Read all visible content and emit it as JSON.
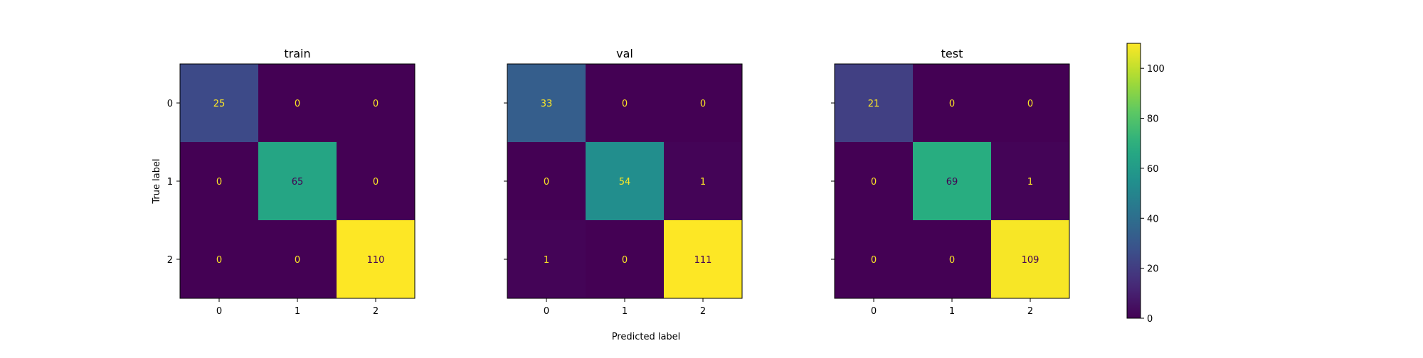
{
  "chart_data": {
    "type": "heatmap",
    "colormap": "viridis",
    "xlabel": "Predicted label",
    "ylabel": "True label",
    "x_ticks": [
      "0",
      "1",
      "2"
    ],
    "y_ticks": [
      "0",
      "1",
      "2"
    ],
    "panels": [
      {
        "title": "train",
        "values": [
          [
            25,
            0,
            0
          ],
          [
            0,
            65,
            0
          ],
          [
            0,
            0,
            110
          ]
        ]
      },
      {
        "title": "val",
        "values": [
          [
            33,
            0,
            0
          ],
          [
            0,
            54,
            1
          ],
          [
            1,
            0,
            111
          ]
        ]
      },
      {
        "title": "test",
        "values": [
          [
            21,
            0,
            0
          ],
          [
            0,
            69,
            1
          ],
          [
            0,
            0,
            109
          ]
        ]
      }
    ],
    "colorbar": {
      "range": [
        0,
        110
      ],
      "ticks": [
        0,
        20,
        40,
        60,
        80,
        100
      ]
    }
  }
}
